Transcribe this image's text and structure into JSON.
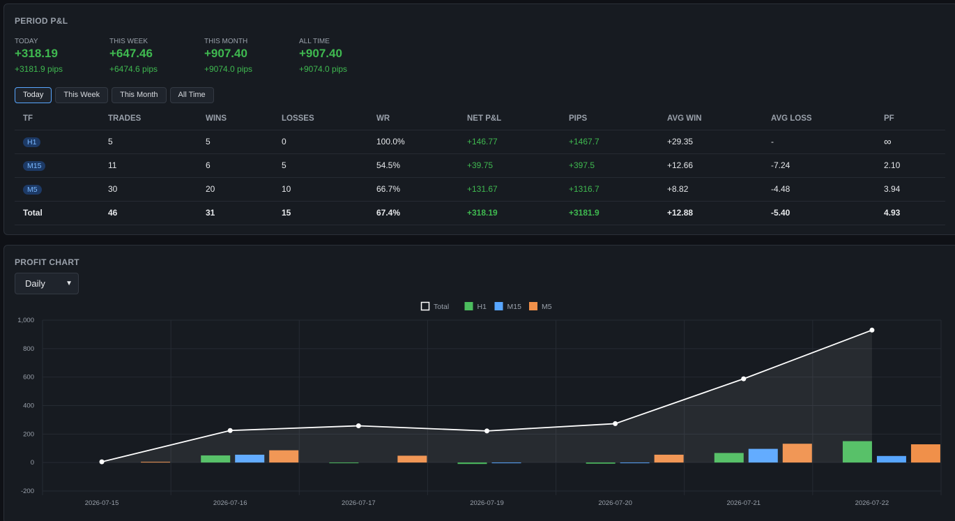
{
  "pnl": {
    "title": "PERIOD P&L",
    "stats": [
      {
        "label": "TODAY",
        "value": "+318.19",
        "pips": "+3181.9 pips"
      },
      {
        "label": "THIS WEEK",
        "value": "+647.46",
        "pips": "+6474.6 pips"
      },
      {
        "label": "THIS MONTH",
        "value": "+907.40",
        "pips": "+9074.0 pips"
      },
      {
        "label": "ALL TIME",
        "value": "+907.40",
        "pips": "+9074.0 pips"
      }
    ],
    "periods": [
      "Today",
      "This Week",
      "This Month",
      "All Time"
    ],
    "active_period": "Today",
    "columns": [
      "TF",
      "TRADES",
      "WINS",
      "LOSSES",
      "WR",
      "NET P&L",
      "PIPS",
      "AVG WIN",
      "AVG LOSS",
      "PF"
    ],
    "rows": [
      [
        "H1",
        "5",
        "5",
        "0",
        "100.0%",
        "+146.77",
        "+1467.7",
        "+29.35",
        "-",
        "∞"
      ],
      [
        "M15",
        "11",
        "6",
        "5",
        "54.5%",
        "+39.75",
        "+397.5",
        "+12.66",
        "-7.24",
        "2.10"
      ],
      [
        "M5",
        "30",
        "20",
        "10",
        "66.7%",
        "+131.67",
        "+1316.7",
        "+8.82",
        "-4.48",
        "3.94"
      ]
    ],
    "total": [
      "Total",
      "46",
      "31",
      "15",
      "67.4%",
      "+318.19",
      "+3181.9",
      "+12.88",
      "-5.40",
      "4.93"
    ]
  },
  "profit_chart": {
    "title": "PROFIT CHART",
    "granularity": "Daily"
  },
  "colors": {
    "positive": "#3fb950",
    "h1": "#4cbd5e",
    "m15": "#58a6ff",
    "m5": "#f0904a",
    "total_line": "#ffffff"
  },
  "chart_data": {
    "type": "bar",
    "categories": [
      "2026-07-15",
      "2026-07-16",
      "2026-07-17",
      "2026-07-19",
      "2026-07-20",
      "2026-07-21",
      "2026-07-22"
    ],
    "series": [
      {
        "name": "Total",
        "type": "line",
        "values": [
          5,
          225,
          258,
          222,
          273,
          588,
          930
        ]
      },
      {
        "name": "H1",
        "values": [
          0,
          50,
          -5,
          -10,
          -8,
          67,
          150
        ]
      },
      {
        "name": "M15",
        "values": [
          0,
          55,
          0,
          -5,
          -2,
          96,
          46
        ]
      },
      {
        "name": "M5",
        "values": [
          5,
          86,
          48,
          0,
          55,
          132,
          128
        ]
      }
    ],
    "ylim": [
      -200,
      1000
    ],
    "yticks": [
      -200,
      0,
      200,
      400,
      600,
      800,
      1000
    ],
    "ytick_labels": [
      "-200",
      "0",
      "200",
      "400",
      "600",
      "800",
      "1,000"
    ],
    "legend_position": "top",
    "grid": true
  }
}
